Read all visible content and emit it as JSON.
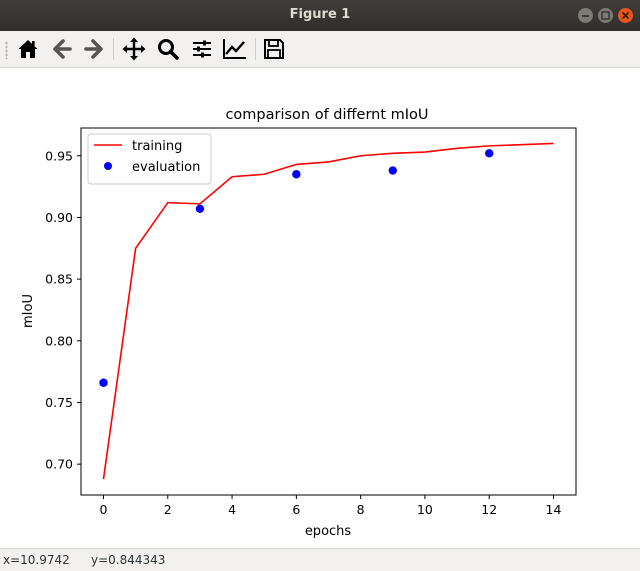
{
  "window": {
    "title": "Figure 1"
  },
  "toolbar": {
    "buttons": [
      {
        "name": "home-icon",
        "label": "Home"
      },
      {
        "name": "back-arrow-icon",
        "label": "Back"
      },
      {
        "name": "forward-arrow-icon",
        "label": "Forward"
      },
      {
        "name": "pan-move-icon",
        "label": "Pan"
      },
      {
        "name": "zoom-magnifier-icon",
        "label": "Zoom"
      },
      {
        "name": "configure-subplots-icon",
        "label": "Subplots"
      },
      {
        "name": "edit-axes-icon",
        "label": "Customize"
      },
      {
        "name": "save-floppy-icon",
        "label": "Save"
      }
    ]
  },
  "status": {
    "x": "x=10.9742",
    "y": "y=0.844343"
  },
  "chart_data": {
    "type": "line",
    "title": "comparison of differnt mIoU",
    "xlabel": "epochs",
    "ylabel": "mIoU",
    "xlim": [
      -0.7,
      14.7
    ],
    "ylim": [
      0.675,
      0.9725
    ],
    "xticks": [
      0,
      2,
      4,
      6,
      8,
      10,
      12,
      14
    ],
    "xtick_labels": [
      "0",
      "2",
      "4",
      "6",
      "8",
      "10",
      "12",
      "14"
    ],
    "yticks": [
      0.7,
      0.75,
      0.8,
      0.85,
      0.9,
      0.95
    ],
    "ytick_labels": [
      "0.70",
      "0.75",
      "0.80",
      "0.85",
      "0.90",
      "0.95"
    ],
    "legend_position": "upper-left",
    "series": [
      {
        "name": "training",
        "style": "line",
        "color": "#ff0000",
        "x": [
          0,
          1,
          2,
          3,
          4,
          5,
          6,
          7,
          8,
          9,
          10,
          11,
          12,
          13,
          14
        ],
        "y": [
          0.688,
          0.875,
          0.912,
          0.911,
          0.933,
          0.935,
          0.943,
          0.945,
          0.95,
          0.952,
          0.953,
          0.956,
          0.958,
          0.959,
          0.96
        ]
      },
      {
        "name": "evaluation",
        "style": "points",
        "color": "#0000ff",
        "x": [
          0,
          3,
          6,
          9,
          12
        ],
        "y": [
          0.766,
          0.907,
          0.935,
          0.938,
          0.952
        ]
      }
    ]
  }
}
